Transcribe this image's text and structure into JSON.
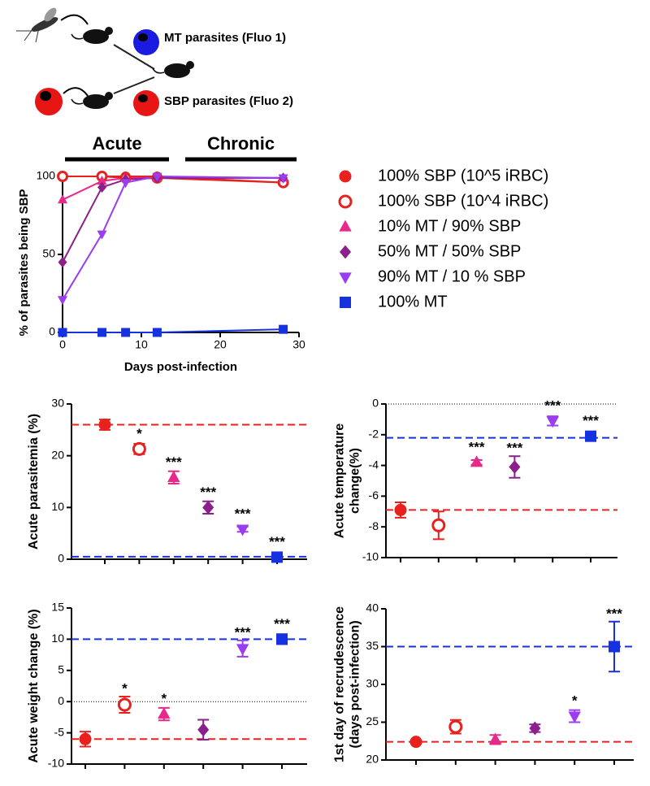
{
  "diagram": {
    "mt_label": "MT parasites (Fluo 1)",
    "sbp_label": "SBP parasites (Fluo 2)"
  },
  "chart_data": [
    {
      "type": "line",
      "ylabel": "% of parasites being SBP",
      "xlabel": "Days post-infection",
      "annotations": [
        "Acute",
        "Chronic"
      ],
      "x": [
        0,
        5,
        8,
        12,
        28
      ],
      "xlim": [
        0,
        30
      ],
      "xticks": [
        0,
        10,
        20,
        30
      ],
      "ylim": [
        0,
        100
      ],
      "yticks": [
        0,
        50,
        100
      ],
      "series": [
        {
          "name": "100% SBP (10^5 iRBC)",
          "color": "#e8201e",
          "marker": "circle",
          "values": [
            100,
            100,
            100,
            100,
            96
          ]
        },
        {
          "name": "100% SBP (10^4 iRBC)",
          "color": "#e8201e",
          "marker": "open-circle",
          "values": [
            100,
            100,
            99,
            99,
            96
          ]
        },
        {
          "name": "10% MT / 90% SBP",
          "color": "#e8288a",
          "marker": "triangle",
          "values": [
            85,
            97,
            99,
            99,
            99
          ]
        },
        {
          "name": "50% MT / 50% SBP",
          "color": "#8b1f8b",
          "marker": "diamond",
          "values": [
            45,
            93,
            98,
            99,
            99
          ]
        },
        {
          "name": "90% MT / 10 % SBP",
          "color": "#9a3cf0",
          "marker": "triangle-down",
          "values": [
            21,
            63,
            96,
            100,
            99
          ]
        },
        {
          "name": "100% MT",
          "color": "#1531e0",
          "marker": "square",
          "values": [
            0,
            0,
            0,
            0,
            2
          ]
        }
      ]
    },
    {
      "type": "dot",
      "ylabel": "Acute parasitemia (%)",
      "ylim": [
        0,
        30
      ],
      "yticks": [
        0,
        10,
        20,
        30
      ],
      "categories": [
        null,
        null,
        null,
        null,
        null,
        null
      ],
      "values": [
        26,
        21.3,
        15.8,
        10,
        5.8,
        0.4
      ],
      "errors": [
        1,
        1,
        1.2,
        1.2,
        0.5,
        0.2
      ],
      "annotations": [
        null,
        "*",
        "***",
        "***",
        "***",
        "***"
      ],
      "colors": [
        "#e8201e",
        "#e8201e",
        "#e8288a",
        "#8b1f8b",
        "#9a3cf0",
        "#1531e0"
      ],
      "markers": [
        "circle",
        "open-circle",
        "triangle",
        "diamond",
        "triangle-down",
        "square"
      ],
      "ref_lines": [
        {
          "value": 26,
          "color": "#e8201e"
        },
        {
          "value": 0.5,
          "color": "#1531e0"
        }
      ],
      "zero_line": false
    },
    {
      "type": "dot",
      "ylabel": [
        "Acute temperature",
        "change(%)"
      ],
      "ylim": [
        -10,
        0
      ],
      "yticks": [
        -10,
        -8,
        -6,
        -4,
        -2,
        0
      ],
      "categories": [
        null,
        null,
        null,
        null,
        null,
        null
      ],
      "values": [
        -6.9,
        -7.9,
        -3.8,
        -4.1,
        -1.1,
        -2.1
      ],
      "errors": [
        0.5,
        0.9,
        0.15,
        0.7,
        0.3,
        0.3
      ],
      "annotations": [
        null,
        null,
        "***",
        "***",
        "***",
        "***"
      ],
      "colors": [
        "#e8201e",
        "#e8201e",
        "#e8288a",
        "#8b1f8b",
        "#9a3cf0",
        "#1531e0"
      ],
      "markers": [
        "circle",
        "open-circle",
        "triangle",
        "diamond",
        "triangle-down",
        "square"
      ],
      "ref_lines": [
        {
          "value": -6.9,
          "color": "#e8201e"
        },
        {
          "value": -2.2,
          "color": "#1531e0"
        }
      ],
      "zero_line": true
    },
    {
      "type": "dot",
      "ylabel": "Acute weight change (%)",
      "ylim": [
        -10,
        15
      ],
      "yticks": [
        -10,
        -5,
        0,
        5,
        10,
        15
      ],
      "categories": [
        null,
        null,
        null,
        null,
        null,
        null
      ],
      "values": [
        -6,
        -0.5,
        -2,
        -4.5,
        8.5,
        10
      ],
      "errors": [
        1.2,
        1.3,
        1,
        1.6,
        1.3,
        0.8
      ],
      "annotations": [
        null,
        "*",
        "*",
        null,
        "***",
        "***"
      ],
      "colors": [
        "#e8201e",
        "#e8201e",
        "#e8288a",
        "#8b1f8b",
        "#9a3cf0",
        "#1531e0"
      ],
      "markers": [
        "circle",
        "open-circle",
        "triangle",
        "diamond",
        "triangle-down",
        "square"
      ],
      "ref_lines": [
        {
          "value": -6,
          "color": "#e8201e"
        },
        {
          "value": 10,
          "color": "#1531e0"
        }
      ],
      "zero_line": true
    },
    {
      "type": "dot",
      "ylabel": [
        "1st day of recrudescence",
        "(days post-infection)"
      ],
      "ylim": [
        20,
        40
      ],
      "yticks": [
        20,
        25,
        30,
        35,
        40
      ],
      "categories": [
        null,
        null,
        null,
        null,
        null,
        null
      ],
      "values": [
        22.4,
        24.4,
        22.7,
        24.2,
        25.8,
        35
      ],
      "errors": [
        0.2,
        0.9,
        0.6,
        0.5,
        0.8,
        3.3
      ],
      "annotations": [
        null,
        null,
        null,
        null,
        "*",
        "***"
      ],
      "colors": [
        "#e8201e",
        "#e8201e",
        "#e8288a",
        "#8b1f8b",
        "#9a3cf0",
        "#1531e0"
      ],
      "markers": [
        "circle",
        "open-circle",
        "triangle",
        "diamond",
        "triangle-down",
        "square"
      ],
      "ref_lines": [
        {
          "value": 22.4,
          "color": "#e8201e"
        },
        {
          "value": 35,
          "color": "#1531e0"
        }
      ],
      "zero_line": false
    }
  ]
}
